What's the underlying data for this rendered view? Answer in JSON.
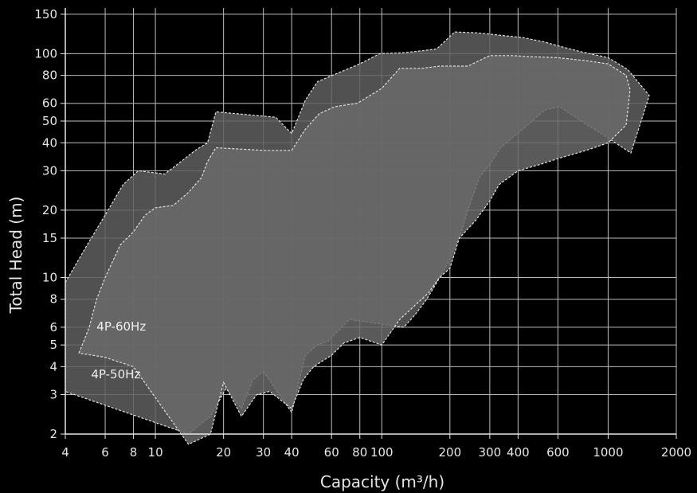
{
  "chart_data": {
    "type": "area",
    "xlabel": "Capacity (m³/h)",
    "ylabel": "Total Head (m)",
    "x_scale": "log",
    "y_scale": "log",
    "xlim": [
      4,
      2000
    ],
    "ylim": [
      2,
      160
    ],
    "x_ticks": [
      4,
      6,
      8,
      10,
      20,
      30,
      40,
      60,
      80,
      100,
      200,
      300,
      400,
      600,
      1000,
      2000
    ],
    "x_tick_labels": [
      "4",
      "6",
      "8",
      "10",
      "20",
      "30",
      "40",
      "60",
      "80",
      "100",
      "200",
      "300",
      "400",
      "600",
      "1000",
      "2000"
    ],
    "y_ticks": [
      2,
      3,
      4,
      5,
      6,
      8,
      10,
      15,
      20,
      30,
      40,
      50,
      60,
      80,
      100,
      150
    ],
    "y_tick_labels": [
      "2",
      "3",
      "4",
      "5",
      "6",
      "8",
      "10",
      "15",
      "20",
      "30",
      "40",
      "50",
      "60",
      "80",
      "100",
      "150"
    ],
    "grid": true,
    "background_color": "#000000",
    "grid_color": "#bdbdbd",
    "series": [
      {
        "name": "4P-60Hz",
        "color": "#5f5f5f",
        "outline": "#e0e0e0",
        "outline_style": "dashed",
        "points": [
          [
            4,
            9.5
          ],
          [
            5,
            14
          ],
          [
            6,
            19
          ],
          [
            7.2,
            26
          ],
          [
            8.4,
            30
          ],
          [
            11,
            29
          ],
          [
            13,
            33
          ],
          [
            15,
            37
          ],
          [
            17,
            40
          ],
          [
            18.5,
            55
          ],
          [
            34,
            52
          ],
          [
            40,
            44
          ],
          [
            46,
            62
          ],
          [
            52,
            75
          ],
          [
            66,
            83
          ],
          [
            80,
            90
          ],
          [
            98,
            100
          ],
          [
            125,
            101
          ],
          [
            150,
            103
          ],
          [
            175,
            105
          ],
          [
            210,
            125
          ],
          [
            260,
            124
          ],
          [
            330,
            121
          ],
          [
            420,
            118
          ],
          [
            520,
            113
          ],
          [
            610,
            108
          ],
          [
            760,
            102
          ],
          [
            1000,
            96
          ],
          [
            1220,
            85
          ],
          [
            1520,
            65
          ],
          [
            1260,
            36
          ],
          [
            1000,
            42
          ],
          [
            760,
            50
          ],
          [
            610,
            58
          ],
          [
            525,
            56
          ],
          [
            420,
            46
          ],
          [
            335,
            38
          ],
          [
            300,
            32
          ],
          [
            270,
            28
          ],
          [
            240,
            20
          ],
          [
            225,
            16
          ],
          [
            195,
            11.5
          ],
          [
            175,
            9.5
          ],
          [
            158,
            8
          ],
          [
            140,
            6.8
          ],
          [
            125,
            6
          ],
          [
            100,
            6.2
          ],
          [
            72,
            6.5
          ],
          [
            58,
            5.2
          ],
          [
            52,
            5
          ],
          [
            46,
            4.5
          ],
          [
            40,
            2.5
          ],
          [
            30,
            3.8
          ],
          [
            27,
            3.5
          ],
          [
            24,
            2.6
          ],
          [
            20.5,
            3.2
          ],
          [
            17.5,
            2.4
          ],
          [
            14,
            2
          ],
          [
            4,
            3.1
          ]
        ]
      },
      {
        "name": "4P-50Hz",
        "color": "#6a6a6a",
        "outline": "#e0e0e0",
        "outline_style": "dashed",
        "points": [
          [
            4.6,
            4.6
          ],
          [
            5.1,
            6
          ],
          [
            5.5,
            8
          ],
          [
            6,
            10
          ],
          [
            7,
            14
          ],
          [
            8,
            16
          ],
          [
            9,
            19
          ],
          [
            10,
            20.5
          ],
          [
            12,
            21
          ],
          [
            14,
            24
          ],
          [
            16,
            28
          ],
          [
            17,
            33
          ],
          [
            18.5,
            38
          ],
          [
            30,
            37
          ],
          [
            40,
            37
          ],
          [
            46,
            46
          ],
          [
            53,
            54
          ],
          [
            62,
            58
          ],
          [
            78,
            60
          ],
          [
            100,
            70
          ],
          [
            120,
            86
          ],
          [
            150,
            86
          ],
          [
            180,
            88
          ],
          [
            240,
            88
          ],
          [
            300,
            98
          ],
          [
            380,
            98
          ],
          [
            450,
            97
          ],
          [
            600,
            96
          ],
          [
            800,
            93
          ],
          [
            1000,
            90
          ],
          [
            1200,
            80
          ],
          [
            1250,
            69
          ],
          [
            1200,
            48
          ],
          [
            1000,
            40
          ],
          [
            800,
            37
          ],
          [
            600,
            34
          ],
          [
            500,
            32
          ],
          [
            400,
            30
          ],
          [
            330,
            26
          ],
          [
            300,
            22
          ],
          [
            260,
            18
          ],
          [
            220,
            15
          ],
          [
            200,
            11
          ],
          [
            180,
            10
          ],
          [
            160,
            8.5
          ],
          [
            140,
            7.5
          ],
          [
            120,
            6.5
          ],
          [
            100,
            5
          ],
          [
            80,
            5.4
          ],
          [
            68,
            5.1
          ],
          [
            60,
            4.5
          ],
          [
            50,
            4
          ],
          [
            45,
            3.5
          ],
          [
            40,
            2.6
          ],
          [
            32,
            3.1
          ],
          [
            28,
            3
          ],
          [
            24,
            2.4
          ],
          [
            20,
            3.4
          ],
          [
            17.5,
            2
          ],
          [
            14,
            1.8
          ],
          [
            8,
            4
          ],
          [
            6,
            4.4
          ]
        ]
      }
    ],
    "annotations": [
      {
        "text": "4P-60Hz",
        "x": 5.5,
        "y": 5.8
      },
      {
        "text": "4P-50Hz",
        "x": 5.2,
        "y": 3.55
      }
    ]
  }
}
